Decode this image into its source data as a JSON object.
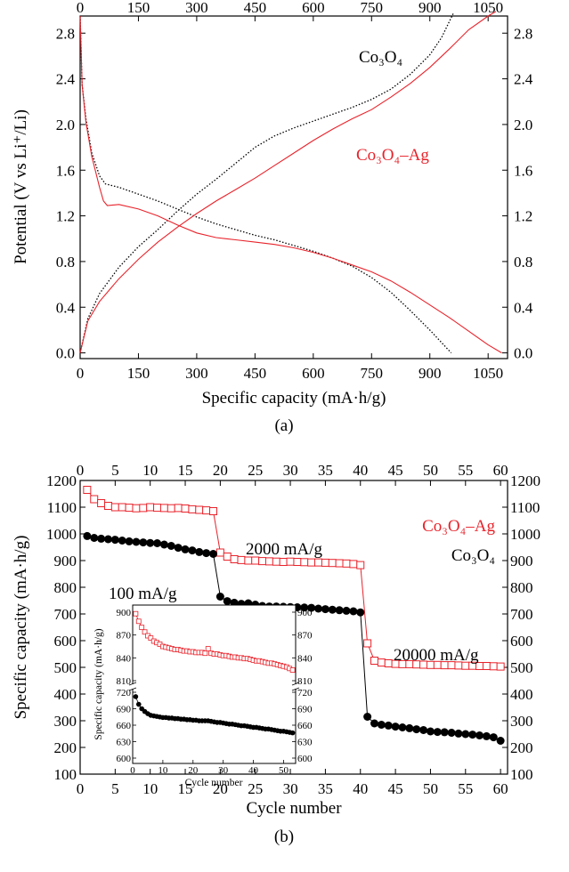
{
  "colors": {
    "co3o4": "#000000",
    "co3o4_ag": "#e8232b"
  },
  "panel_a": {
    "label": "(a)",
    "legend_co3o4": "Co₃O₄",
    "legend_co3o4_ag": "Co₃O₄–Ag"
  },
  "panel_b": {
    "label": "(b)",
    "legend_co3o4_ag": "Co₃O₄–Ag",
    "legend_co3o4": "Co₃O₄",
    "rate_1": "100 mA/g",
    "rate_2": "2000 mA/g",
    "rate_3": "20000 mA/g"
  },
  "chart_data": [
    {
      "id": "a",
      "type": "line",
      "xlabel": "Specific capacity (mA·h/g)",
      "ylabel": "Potential (V vs Li⁺/Li)",
      "xlim": [
        0,
        1100
      ],
      "ylim": [
        -0.05,
        2.95
      ],
      "xticks": [
        0,
        150,
        300,
        450,
        600,
        750,
        900,
        1050
      ],
      "yticks": [
        0.0,
        0.4,
        0.8,
        1.2,
        1.6,
        2.0,
        2.4,
        2.8
      ],
      "series": [
        {
          "name": "Co₃O₄",
          "style": "dotted",
          "color": "#000000",
          "curve": "discharge",
          "x": [
            0,
            5,
            15,
            30,
            50,
            65,
            100,
            150,
            200,
            250,
            300,
            350,
            400,
            450,
            500,
            550,
            600,
            650,
            700,
            750,
            800,
            850,
            900,
            955
          ],
          "y": [
            2.95,
            2.35,
            2.05,
            1.75,
            1.55,
            1.48,
            1.45,
            1.39,
            1.33,
            1.26,
            1.19,
            1.13,
            1.08,
            1.03,
            0.99,
            0.94,
            0.89,
            0.83,
            0.76,
            0.66,
            0.53,
            0.37,
            0.2,
            0.0
          ]
        },
        {
          "name": "Co₃O₄",
          "style": "dotted",
          "color": "#000000",
          "curve": "charge",
          "x": [
            0,
            20,
            50,
            100,
            150,
            200,
            250,
            300,
            350,
            400,
            450,
            500,
            550,
            600,
            650,
            700,
            750,
            800,
            850,
            900,
            930,
            960
          ],
          "y": [
            0.0,
            0.3,
            0.52,
            0.75,
            0.93,
            1.08,
            1.24,
            1.39,
            1.52,
            1.66,
            1.8,
            1.9,
            1.97,
            2.03,
            2.09,
            2.15,
            2.22,
            2.31,
            2.44,
            2.61,
            2.76,
            2.97
          ]
        },
        {
          "name": "Co₃O₄–Ag",
          "style": "solid",
          "color": "#e8232b",
          "curve": "discharge",
          "x": [
            0,
            5,
            15,
            30,
            50,
            60,
            70,
            100,
            150,
            200,
            250,
            300,
            350,
            400,
            450,
            500,
            550,
            600,
            650,
            700,
            750,
            800,
            850,
            900,
            950,
            1000,
            1050,
            1085
          ],
          "y": [
            2.95,
            2.35,
            2.02,
            1.72,
            1.45,
            1.33,
            1.29,
            1.3,
            1.26,
            1.2,
            1.12,
            1.05,
            1.01,
            0.99,
            0.97,
            0.95,
            0.92,
            0.88,
            0.83,
            0.77,
            0.71,
            0.63,
            0.53,
            0.42,
            0.31,
            0.19,
            0.07,
            0.0
          ]
        },
        {
          "name": "Co₃O₄–Ag",
          "style": "solid",
          "color": "#e8232b",
          "curve": "charge",
          "x": [
            0,
            20,
            50,
            100,
            150,
            200,
            250,
            300,
            350,
            400,
            450,
            500,
            550,
            600,
            650,
            700,
            750,
            800,
            850,
            900,
            950,
            1000,
            1050,
            1070
          ],
          "y": [
            0.0,
            0.28,
            0.45,
            0.65,
            0.82,
            0.97,
            1.1,
            1.22,
            1.33,
            1.43,
            1.53,
            1.64,
            1.75,
            1.86,
            1.96,
            2.05,
            2.13,
            2.24,
            2.36,
            2.5,
            2.66,
            2.83,
            2.95,
            2.99
          ]
        }
      ]
    },
    {
      "id": "b",
      "type": "scatter",
      "xlabel": "Cycle number",
      "ylabel": "Specific capacity (mA·h/g)",
      "xlim": [
        0,
        61
      ],
      "ylim": [
        100,
        1200
      ],
      "xticks": [
        0,
        5,
        10,
        15,
        20,
        25,
        30,
        35,
        40,
        45,
        50,
        55,
        60
      ],
      "yticks": [
        100,
        200,
        300,
        400,
        500,
        600,
        700,
        800,
        900,
        1000,
        1100,
        1200
      ],
      "series": [
        {
          "name": "Co₃O₄–Ag",
          "marker": "open-square",
          "color": "#e8232b",
          "x": [
            1,
            2,
            3,
            4,
            5,
            6,
            7,
            8,
            9,
            10,
            11,
            12,
            13,
            14,
            15,
            16,
            17,
            18,
            19,
            20,
            21,
            22,
            23,
            24,
            25,
            26,
            27,
            28,
            29,
            30,
            31,
            32,
            33,
            34,
            35,
            36,
            37,
            38,
            39,
            40,
            41,
            42,
            43,
            44,
            45,
            46,
            47,
            48,
            49,
            50,
            51,
            52,
            53,
            54,
            55,
            56,
            57,
            58,
            59,
            60
          ],
          "y": [
            1165,
            1130,
            1115,
            1105,
            1100,
            1100,
            1098,
            1096,
            1097,
            1100,
            1098,
            1097,
            1096,
            1097,
            1095,
            1092,
            1090,
            1088,
            1085,
            930,
            915,
            905,
            902,
            900,
            900,
            898,
            897,
            896,
            895,
            896,
            895,
            894,
            893,
            893,
            892,
            891,
            890,
            889,
            887,
            883,
            590,
            525,
            518,
            515,
            513,
            512,
            512,
            511,
            510,
            509,
            509,
            508,
            508,
            507,
            506,
            506,
            505,
            505,
            504,
            503
          ]
        },
        {
          "name": "Co₃O₄",
          "marker": "filled-circle",
          "color": "#000000",
          "x": [
            1,
            2,
            3,
            4,
            5,
            6,
            7,
            8,
            9,
            10,
            11,
            12,
            13,
            14,
            15,
            16,
            17,
            18,
            19,
            20,
            21,
            22,
            23,
            24,
            25,
            26,
            27,
            28,
            29,
            30,
            31,
            32,
            33,
            34,
            35,
            36,
            37,
            38,
            39,
            40,
            41,
            42,
            43,
            44,
            45,
            46,
            47,
            48,
            49,
            50,
            51,
            52,
            53,
            54,
            55,
            56,
            57,
            58,
            59,
            60
          ],
          "y": [
            992,
            985,
            982,
            980,
            978,
            975,
            972,
            970,
            968,
            966,
            965,
            960,
            955,
            948,
            942,
            938,
            932,
            928,
            925,
            765,
            748,
            742,
            738,
            740,
            735,
            730,
            728,
            728,
            727,
            726,
            725,
            724,
            723,
            720,
            718,
            716,
            714,
            712,
            710,
            706,
            315,
            290,
            285,
            282,
            278,
            275,
            272,
            268,
            265,
            260,
            258,
            257,
            255,
            252,
            250,
            248,
            245,
            242,
            238,
            225
          ]
        }
      ]
    },
    {
      "id": "b-inset",
      "type": "scatter",
      "xlabel": "Cycle number",
      "ylabel": "Specific capacity (mA·h/g)",
      "xlim": [
        0,
        54
      ],
      "axis_break": [
        720,
        810
      ],
      "ylim_lower": [
        600,
        720
      ],
      "ylim_upper": [
        810,
        900
      ],
      "xticks": [
        0,
        10,
        20,
        30,
        40,
        50
      ],
      "yticks_lower": [
        600,
        630,
        660,
        690,
        720
      ],
      "yticks_upper": [
        810,
        840,
        870,
        900
      ],
      "series": [
        {
          "name": "Co₃O₄–Ag",
          "marker": "open-square",
          "color": "#e8232b",
          "x": [
            1,
            2,
            3,
            4,
            5,
            6,
            7,
            8,
            9,
            10,
            11,
            12,
            13,
            14,
            15,
            16,
            17,
            18,
            19,
            20,
            21,
            22,
            23,
            24,
            25,
            26,
            27,
            28,
            29,
            30,
            31,
            32,
            33,
            34,
            35,
            36,
            37,
            38,
            39,
            40,
            41,
            42,
            43,
            44,
            45,
            46,
            47,
            48,
            49,
            50,
            51,
            52,
            53
          ],
          "y": [
            898,
            888,
            880,
            874,
            869,
            866,
            862,
            860,
            858,
            855,
            854,
            853,
            852,
            851,
            851,
            850,
            849,
            849,
            848,
            848,
            847,
            847,
            847,
            846,
            852,
            846,
            845,
            845,
            844,
            843,
            843,
            842,
            841,
            841,
            840,
            840,
            839,
            839,
            838,
            837,
            836,
            836,
            835,
            834,
            833,
            833,
            832,
            831,
            830,
            829,
            828,
            826,
            824
          ]
        },
        {
          "name": "Co₃O₄",
          "marker": "filled-circle",
          "color": "#000000",
          "x": [
            1,
            2,
            3,
            4,
            5,
            6,
            7,
            8,
            9,
            10,
            11,
            12,
            13,
            14,
            15,
            16,
            17,
            18,
            19,
            20,
            21,
            22,
            23,
            24,
            25,
            26,
            27,
            28,
            29,
            30,
            31,
            32,
            33,
            34,
            35,
            36,
            37,
            38,
            39,
            40,
            41,
            42,
            43,
            44,
            45,
            46,
            47,
            48,
            49,
            50,
            51,
            52,
            53
          ],
          "y": [
            712,
            698,
            690,
            685,
            681,
            678,
            677,
            676,
            675,
            674,
            674,
            673,
            673,
            672,
            672,
            671,
            671,
            670,
            670,
            669,
            669,
            668,
            668,
            668,
            668,
            667,
            666,
            665,
            665,
            664,
            663,
            662,
            662,
            661,
            660,
            659,
            659,
            658,
            657,
            656,
            656,
            655,
            654,
            653,
            653,
            652,
            651,
            650,
            649,
            649,
            648,
            647,
            646
          ]
        }
      ]
    }
  ]
}
